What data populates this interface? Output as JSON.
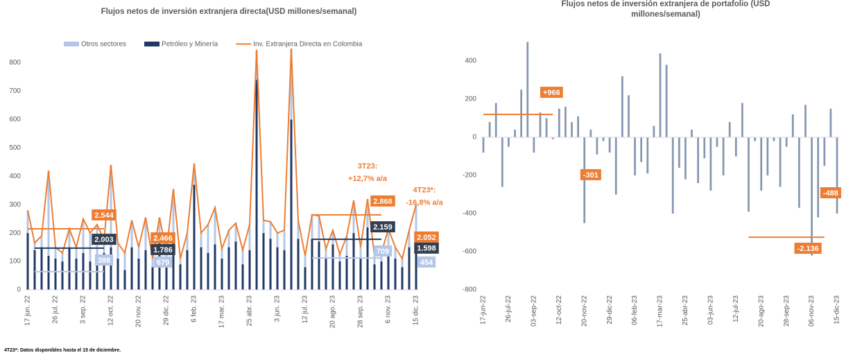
{
  "chart_data": [
    {
      "type": "combo",
      "title": "Flujos netos de inversión extranjera directa(USD millones/semanal)",
      "categories": [
        "17 jun. 22",
        null,
        null,
        null,
        "26 jul. 22",
        null,
        null,
        null,
        "3 sep. 22",
        null,
        null,
        null,
        "12 oct. 22",
        null,
        null,
        null,
        "20 nov. 22",
        null,
        null,
        null,
        "29 dic. 22",
        null,
        null,
        null,
        "6 feb. 23",
        null,
        null,
        null,
        "17 mar. 23",
        null,
        null,
        null,
        "25 abr. 23",
        null,
        null,
        null,
        "3 jun. 23",
        null,
        null,
        null,
        "12 jul. 23",
        null,
        null,
        null,
        "20 ago. 23",
        null,
        null,
        null,
        "28 sep. 23",
        null,
        null,
        null,
        "6 nov. 23",
        null,
        null,
        null,
        "15 dic. 23"
      ],
      "series": [
        {
          "name": "Otros sectores",
          "type": "bar",
          "color": "#b4c7e7",
          "values": [
            80,
            25,
            40,
            300,
            40,
            30,
            65,
            40,
            120,
            100,
            110,
            45,
            290,
            55,
            60,
            95,
            40,
            115,
            30,
            85,
            35,
            155,
            20,
            60,
            75,
            50,
            100,
            130,
            35,
            60,
            65,
            50,
            90,
            105,
            45,
            60,
            50,
            70,
            250,
            65,
            40,
            85,
            90,
            35,
            50,
            25,
            70,
            115,
            40,
            100,
            30,
            30,
            65,
            40,
            30,
            60,
            140
          ]
        },
        {
          "name": "Petróleo y Minería",
          "type": "bar",
          "color": "#1f3864",
          "values": [
            200,
            140,
            150,
            120,
            110,
            100,
            150,
            110,
            130,
            100,
            120,
            130,
            150,
            110,
            70,
            150,
            110,
            140,
            80,
            170,
            100,
            200,
            90,
            140,
            370,
            150,
            130,
            160,
            110,
            150,
            170,
            90,
            140,
            740,
            200,
            180,
            150,
            140,
            600,
            180,
            80,
            180,
            170,
            110,
            160,
            100,
            120,
            200,
            110,
            220,
            90,
            100,
            150,
            110,
            80,
            150,
            160
          ]
        },
        {
          "name": "Inv. Extranjera Directa en Colombia",
          "type": "line",
          "color": "#ed7d31",
          "values": [
            280,
            165,
            190,
            420,
            150,
            130,
            215,
            150,
            250,
            200,
            230,
            175,
            440,
            165,
            130,
            245,
            150,
            255,
            110,
            255,
            135,
            355,
            110,
            200,
            445,
            200,
            230,
            290,
            145,
            210,
            235,
            140,
            230,
            845,
            245,
            240,
            200,
            210,
            850,
            245,
            120,
            265,
            260,
            145,
            210,
            125,
            190,
            315,
            150,
            320,
            120,
            130,
            215,
            150,
            110,
            210,
            300
          ]
        }
      ],
      "ylim": [
        0,
        850
      ],
      "yticks": [
        0,
        100,
        200,
        300,
        400,
        500,
        600,
        700,
        800
      ],
      "legend": "top",
      "ref_lines": [
        {
          "value": 215,
          "from": 0,
          "to": 11,
          "color": "#ed7d31"
        },
        {
          "value": 147,
          "from": 1,
          "to": 11,
          "color": "#1f3864"
        },
        {
          "value": 64,
          "from": 1,
          "to": 11,
          "color": "#b4c7e7"
        },
        {
          "value": 264,
          "from": 41,
          "to": 51,
          "color": "#ed7d31"
        },
        {
          "value": 178,
          "from": 41,
          "to": 51,
          "color": "#1f3864"
        },
        {
          "value": 112,
          "from": 41,
          "to": 51,
          "color": "#b4c7e7"
        }
      ],
      "boxes": [
        {
          "text": "2.544",
          "x": 11,
          "y": 264,
          "color": "#ed7d31"
        },
        {
          "text": "2.003",
          "x": 11,
          "y": 178,
          "color": "#333f50"
        },
        {
          "text": "398",
          "x": 11,
          "y": 105,
          "color": "#b4c7e7"
        },
        {
          "text": "2.466",
          "x": 19.5,
          "y": 183,
          "color": "#ed7d31"
        },
        {
          "text": "1.786",
          "x": 19.5,
          "y": 142,
          "color": "#333f50"
        },
        {
          "text": "679",
          "x": 19.5,
          "y": 98,
          "color": "#b4c7e7"
        },
        {
          "text": "2.868",
          "x": 51.2,
          "y": 313,
          "color": "#ed7d31"
        },
        {
          "text": "2.159",
          "x": 51.2,
          "y": 222,
          "color": "#333f50"
        },
        {
          "text": "709",
          "x": 51.2,
          "y": 137,
          "color": "#b4c7e7"
        },
        {
          "text": "2.052",
          "x": 57.5,
          "y": 186,
          "color": "#ed7d31"
        },
        {
          "text": "1.598",
          "x": 57.5,
          "y": 147,
          "color": "#333f50"
        },
        {
          "text": "454",
          "x": 57.5,
          "y": 98,
          "color": "#b4c7e7"
        }
      ],
      "notes": [
        {
          "text": "3T23:",
          "x": 49,
          "y": 435
        },
        {
          "text": "+12,7% a/a",
          "x": 49,
          "y": 391
        },
        {
          "text": "4T23*:",
          "x": 57.2,
          "y": 350
        },
        {
          "text": "-16,8% a/a",
          "x": 57.2,
          "y": 306
        }
      ]
    },
    {
      "type": "bar",
      "title": "Flujos netos de inversión extranjera de portafolio (USD",
      "subtitle": "millones/semanal)",
      "categories": [
        "17-jun-22",
        null,
        null,
        null,
        "26-jul-22",
        null,
        null,
        null,
        "03-sep-22",
        null,
        null,
        null,
        "12-oct-22",
        null,
        null,
        null,
        "20-nov-22",
        null,
        null,
        null,
        "29-dic-22",
        null,
        null,
        null,
        "06-feb-23",
        null,
        null,
        null,
        "17-mar-23",
        null,
        null,
        null,
        "25-abr-23",
        null,
        null,
        null,
        "03-jun-23",
        null,
        null,
        null,
        "12-jul-23",
        null,
        null,
        null,
        "20-ago-23",
        null,
        null,
        null,
        "28-sep-23",
        null,
        null,
        null,
        "06-nov-23",
        null,
        null,
        null,
        "15-dic-23"
      ],
      "values": [
        -80,
        80,
        180,
        -260,
        -50,
        40,
        250,
        500,
        -80,
        130,
        100,
        -10,
        150,
        160,
        80,
        110,
        -450,
        40,
        -90,
        -20,
        -80,
        -300,
        320,
        220,
        -200,
        -130,
        -190,
        60,
        440,
        380,
        -400,
        -160,
        -220,
        40,
        -240,
        -110,
        -280,
        -50,
        -200,
        80,
        -100,
        180,
        -390,
        -20,
        -280,
        -200,
        -20,
        -260,
        -50,
        120,
        -370,
        170,
        -620,
        -420,
        -150,
        150,
        -400
      ],
      "color": "#8496b0",
      "ylim": [
        -800,
        500
      ],
      "yticks": [
        -800,
        -600,
        -400,
        -200,
        0,
        200,
        400
      ],
      "ref_lines": [
        {
          "value": 120,
          "from": 0,
          "to": 11,
          "color": "#ed7d31"
        },
        {
          "value": -524,
          "from": 42,
          "to": 54,
          "color": "#ed7d31"
        }
      ],
      "boxes": [
        {
          "text": "+966",
          "x": 10.8,
          "y": 236,
          "color": "#ed7d31"
        },
        {
          "text": "-301",
          "x": 17,
          "y": -196,
          "color": "#ed7d31"
        },
        {
          "text": "-488",
          "x": 55,
          "y": -291,
          "color": "#ed7d31"
        },
        {
          "text": "-2.136",
          "x": 51.4,
          "y": -582,
          "color": "#ed7d31"
        }
      ]
    }
  ],
  "footnote": "4T23*: Datos disponibles hasta el 15 de diciembre."
}
